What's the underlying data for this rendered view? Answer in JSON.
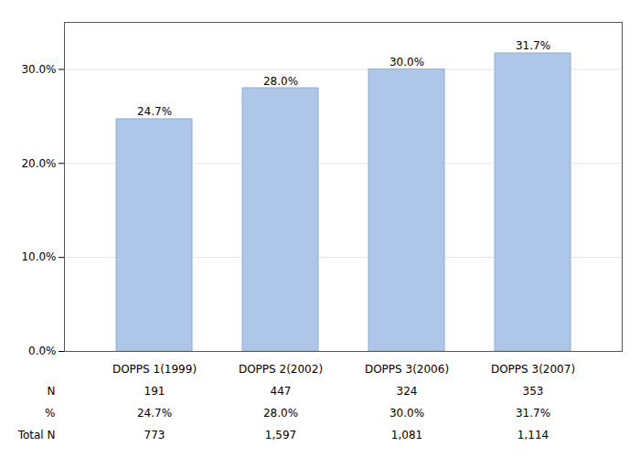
{
  "chart_data": {
    "type": "bar",
    "categories": [
      "DOPPS 1(1999)",
      "DOPPS 2(2002)",
      "DOPPS 3(2006)",
      "DOPPS 3(2007)"
    ],
    "values": [
      0.247,
      0.28,
      0.3,
      0.317
    ],
    "value_labels": [
      "24.7%",
      "28.0%",
      "30.0%",
      "31.7%"
    ],
    "color": "#aec6e8",
    "ylim": [
      0.0,
      0.35
    ],
    "yticks": [
      {
        "value": 0.0,
        "label": "0.0%"
      },
      {
        "value": 0.1,
        "label": "10.0%"
      },
      {
        "value": 0.2,
        "label": "20.0%"
      },
      {
        "value": 0.3,
        "label": "30.0%"
      }
    ],
    "grid": true,
    "data_labels": true,
    "table": {
      "rows": [
        {
          "label": "N",
          "values": [
            "191",
            "447",
            "324",
            "353"
          ]
        },
        {
          "label": "%",
          "values": [
            "24.7%",
            "28.0%",
            "30.0%",
            "31.7%"
          ]
        },
        {
          "label": "Total N",
          "values": [
            "773",
            "1,597",
            "1,081",
            "1,114"
          ]
        }
      ]
    }
  }
}
